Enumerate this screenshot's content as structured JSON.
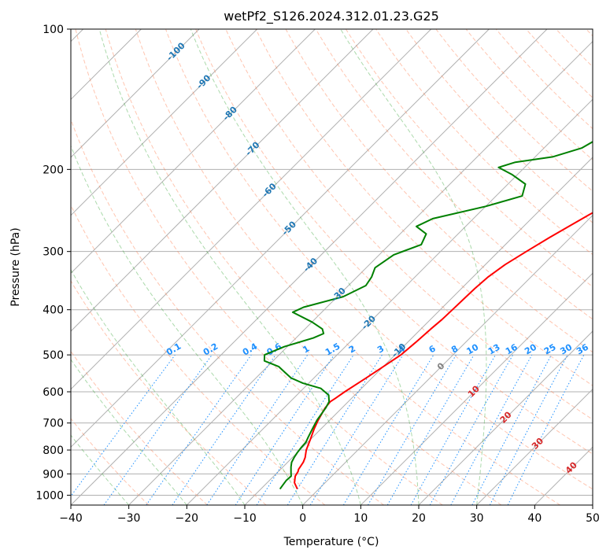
{
  "chart_data": {
    "type": "line",
    "title": "wetPf2_S126.2024.312.01.23.G25",
    "xlabel": "Temperature (°C)",
    "ylabel": "Pressure (hPa)",
    "xlim": [
      -40,
      50
    ],
    "ylim": [
      1050,
      100
    ],
    "y_scale": "log",
    "grid": true,
    "x_ticks": [
      -40,
      -30,
      -20,
      -10,
      0,
      10,
      20,
      30,
      40,
      50
    ],
    "y_ticks": [
      1000,
      900,
      800,
      700,
      600,
      500,
      400,
      300,
      200,
      100
    ],
    "series": [
      {
        "color": "#ff0000",
        "points": [
          [
            -3.7,
            970
          ],
          [
            -5.3,
            940
          ],
          [
            -6.3,
            910
          ],
          [
            -6.6,
            890
          ],
          [
            -6.9,
            880
          ],
          [
            -7.3,
            850
          ],
          [
            -7.8,
            830
          ],
          [
            -8.9,
            800
          ],
          [
            -10.0,
            760
          ],
          [
            -11.2,
            720
          ],
          [
            -12.0,
            690
          ],
          [
            -12.9,
            650
          ],
          [
            -13.1,
            630
          ],
          [
            -12.8,
            620
          ],
          [
            -12.3,
            600
          ],
          [
            -11.0,
            560
          ],
          [
            -10.0,
            530
          ],
          [
            -9.0,
            500
          ],
          [
            -8.6,
            470
          ],
          [
            -8.3,
            440
          ],
          [
            -8.0,
            420
          ],
          [
            -7.9,
            400
          ],
          [
            -7.8,
            380
          ],
          [
            -7.7,
            360
          ],
          [
            -7.4,
            340
          ],
          [
            -6.6,
            320
          ],
          [
            -5.2,
            300
          ],
          [
            -3.6,
            280
          ],
          [
            -2.2,
            265
          ],
          [
            -0.7,
            250
          ],
          [
            1.8,
            230
          ],
          [
            5.0,
            215
          ],
          [
            8.0,
            200
          ],
          [
            10.4,
            190
          ],
          [
            13.0,
            175
          ],
          [
            16.5,
            155
          ],
          [
            19.0,
            140
          ],
          [
            21.5,
            125
          ],
          [
            24.0,
            115
          ],
          [
            28.0,
            106
          ],
          [
            31.0,
            100
          ]
        ]
      },
      {
        "color": "#008000",
        "points": [
          [
            -6.7,
            970
          ],
          [
            -6.9,
            950
          ],
          [
            -7.1,
            930
          ],
          [
            -7.0,
            910
          ],
          [
            -7.8,
            890
          ],
          [
            -8.6,
            870
          ],
          [
            -9.3,
            850
          ],
          [
            -9.7,
            830
          ],
          [
            -10.0,
            810
          ],
          [
            -10.2,
            790
          ],
          [
            -10.3,
            770
          ],
          [
            -10.8,
            750
          ],
          [
            -11.5,
            720
          ],
          [
            -12.2,
            690
          ],
          [
            -12.8,
            650
          ],
          [
            -13.3,
            630
          ],
          [
            -14.5,
            610
          ],
          [
            -17.0,
            590
          ],
          [
            -21.0,
            575
          ],
          [
            -24.0,
            560
          ],
          [
            -26.0,
            545
          ],
          [
            -28.0,
            530
          ],
          [
            -31.5,
            515
          ],
          [
            -32.5,
            500
          ],
          [
            -30.5,
            480
          ],
          [
            -27.0,
            460
          ],
          [
            -26.0,
            450
          ],
          [
            -27.0,
            440
          ],
          [
            -30.0,
            425
          ],
          [
            -35.0,
            405
          ],
          [
            -34.0,
            395
          ],
          [
            -29.0,
            375
          ],
          [
            -27.0,
            355
          ],
          [
            -27.5,
            340
          ],
          [
            -28.5,
            325
          ],
          [
            -27.5,
            305
          ],
          [
            -24.5,
            290
          ],
          [
            -25.5,
            275
          ],
          [
            -28.5,
            265
          ],
          [
            -27.0,
            255
          ],
          [
            -20.0,
            240
          ],
          [
            -15.5,
            228
          ],
          [
            -17.0,
            215
          ],
          [
            -21.0,
            205
          ],
          [
            -24.5,
            198
          ],
          [
            -22.5,
            193
          ],
          [
            -17.0,
            188
          ],
          [
            -13.5,
            180
          ],
          [
            -12.0,
            170
          ],
          [
            -11.0,
            160
          ],
          [
            -10.0,
            150
          ],
          [
            -8.5,
            138
          ],
          [
            -7.5,
            128
          ],
          [
            -6.0,
            115
          ],
          [
            -4.0,
            106
          ],
          [
            -1.3,
            100
          ]
        ]
      }
    ],
    "dry_adiabats": {
      "color": "#ff7f50",
      "theta": [
        -30,
        -20,
        -10,
        0,
        10,
        20,
        30,
        40,
        50,
        60,
        70,
        80,
        90,
        100,
        110,
        120,
        130,
        140,
        150,
        160,
        170,
        180,
        190,
        200,
        210,
        220
      ]
    },
    "moist_adiabats": {
      "color": "#2ca02c",
      "start_temps": [
        -40,
        -30,
        -20,
        -10,
        0,
        10,
        20,
        30
      ]
    },
    "mixing_ratio": {
      "color": "#1e90ff",
      "label_pressure": 500,
      "values": [
        0.1,
        0.2,
        0.4,
        0.6,
        1,
        1.5,
        2,
        3,
        4,
        6,
        8,
        10,
        13,
        16,
        20,
        25,
        30,
        36
      ],
      "labels": [
        "0.1",
        "0.2",
        "0.4",
        "0.6",
        "1",
        "1.5",
        "2",
        "3",
        "4",
        "6",
        "8",
        "10",
        "13",
        "16",
        "20",
        "25",
        "30",
        "36"
      ]
    },
    "isotherm_labels": [
      {
        "value": -100,
        "text": "-100",
        "color": "#1f77b4"
      },
      {
        "value": -90,
        "text": "-90",
        "color": "#1f77b4"
      },
      {
        "value": -80,
        "text": "-80",
        "color": "#1f77b4"
      },
      {
        "value": -70,
        "text": "-70",
        "color": "#1f77b4"
      },
      {
        "value": -60,
        "text": "-60",
        "color": "#1f77b4"
      },
      {
        "value": -50,
        "text": "-50",
        "color": "#1f77b4"
      },
      {
        "value": -40,
        "text": "-40",
        "color": "#1f77b4"
      },
      {
        "value": -30,
        "text": "-30",
        "color": "#1f77b4"
      },
      {
        "value": -20,
        "text": "-20",
        "color": "#1f77b4"
      },
      {
        "value": -10,
        "text": "-10",
        "color": "#1f77b4"
      },
      {
        "value": 0,
        "text": "0",
        "color": "#808080"
      },
      {
        "value": 10,
        "text": "10",
        "color": "#d62728"
      },
      {
        "value": 20,
        "text": "20",
        "color": "#d62728"
      },
      {
        "value": 30,
        "text": "30",
        "color": "#d62728"
      },
      {
        "value": 40,
        "text": "40",
        "color": "#d62728"
      }
    ],
    "isotherm_label_pressures": [
      112,
      130,
      152,
      181,
      222,
      268,
      321,
      372,
      427,
      490,
      530,
      600,
      682,
      776,
      875
    ]
  }
}
